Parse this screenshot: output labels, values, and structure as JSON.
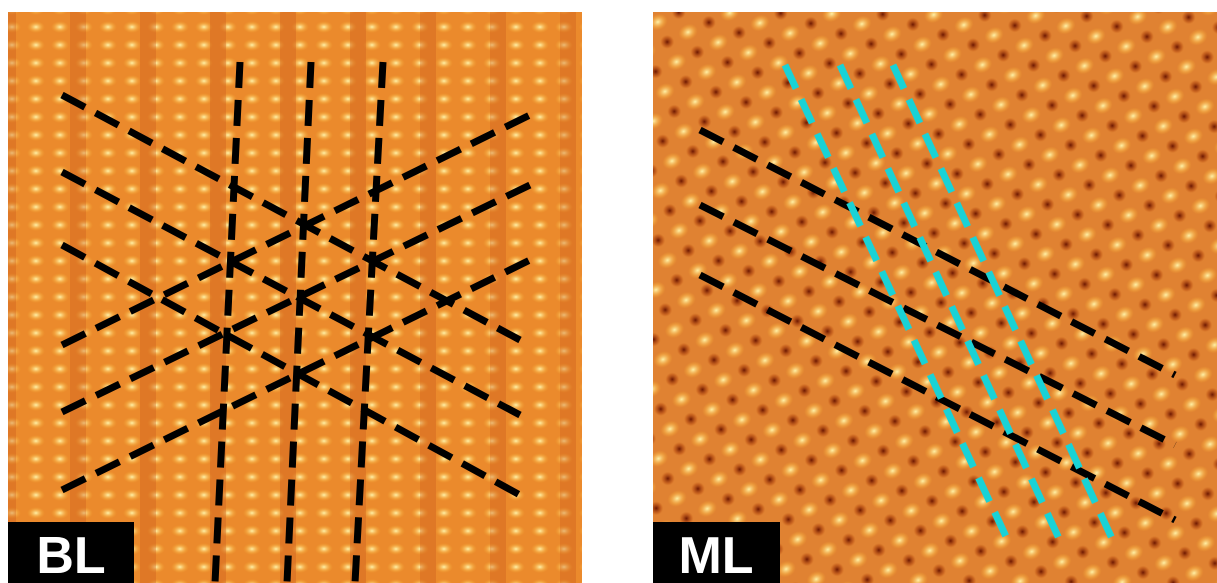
{
  "panels": [
    {
      "label": "BL"
    },
    {
      "label": "ML"
    }
  ]
}
